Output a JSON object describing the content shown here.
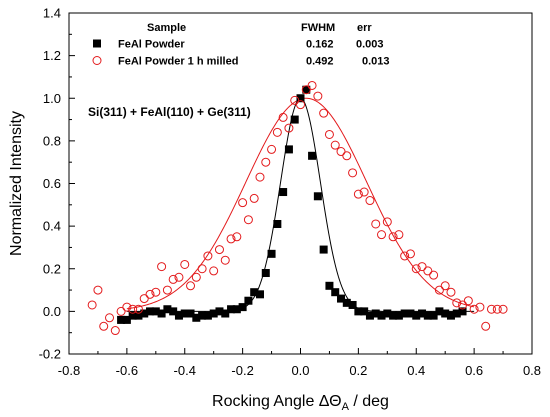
{
  "chart_data": {
    "type": "scatter",
    "xlabel": "Rocking Angle ΔΘ",
    "xlabel_sub": "A",
    "xlabel_unit": " / deg",
    "ylabel": "Normalized Intensity",
    "xlim": [
      -0.8,
      0.8
    ],
    "ylim": [
      -0.2,
      1.4
    ],
    "xticks": [
      -0.8,
      -0.6,
      -0.4,
      -0.2,
      0.0,
      0.2,
      0.4,
      0.6,
      0.8
    ],
    "yticks": [
      -0.2,
      0.0,
      0.2,
      0.4,
      0.6,
      0.8,
      1.0,
      1.2,
      1.4
    ],
    "xtick_labels": [
      "-0.8",
      "-0.6",
      "-0.4",
      "-0.2",
      "0.0",
      "0.2",
      "0.4",
      "0.6",
      "0.8"
    ],
    "ytick_labels": [
      "-0.2",
      "0.0",
      "0.2",
      "0.4",
      "0.6",
      "0.8",
      "1.0",
      "1.2",
      "1.4"
    ],
    "grid": false,
    "legend_position": "top-left",
    "legend_headers": {
      "sample": "Sample",
      "fwhm": "FWHM",
      "err": "err"
    },
    "annotation": "Si(311) + FeAl(110) + Ge(311)",
    "series": [
      {
        "name": "FeAl Powder",
        "fwhm": "0.162",
        "err": "0.003",
        "marker": "filled-square",
        "color": "#000000",
        "fit": {
          "center": 0.0,
          "fwhm": 0.162,
          "amplitude": 1.0
        },
        "x": [
          -0.62,
          -0.6,
          -0.58,
          -0.56,
          -0.54,
          -0.52,
          -0.5,
          -0.48,
          -0.46,
          -0.44,
          -0.42,
          -0.4,
          -0.38,
          -0.36,
          -0.34,
          -0.32,
          -0.3,
          -0.28,
          -0.26,
          -0.24,
          -0.22,
          -0.2,
          -0.18,
          -0.16,
          -0.14,
          -0.12,
          -0.1,
          -0.08,
          -0.06,
          -0.04,
          -0.02,
          0.0,
          0.02,
          0.04,
          0.06,
          0.08,
          0.1,
          0.12,
          0.14,
          0.16,
          0.18,
          0.2,
          0.22,
          0.24,
          0.26,
          0.28,
          0.3,
          0.32,
          0.34,
          0.36,
          0.38,
          0.4,
          0.42,
          0.44,
          0.46,
          0.48,
          0.5,
          0.52,
          0.54,
          0.56
        ],
        "y": [
          -0.04,
          -0.04,
          -0.02,
          -0.02,
          -0.01,
          0.0,
          0.0,
          -0.01,
          0.01,
          0.0,
          -0.02,
          -0.01,
          -0.01,
          -0.03,
          -0.02,
          -0.02,
          -0.01,
          0.0,
          -0.01,
          0.01,
          0.01,
          0.02,
          0.05,
          0.09,
          0.08,
          0.18,
          0.27,
          0.41,
          0.56,
          0.76,
          0.9,
          1.0,
          1.04,
          0.73,
          0.54,
          0.29,
          0.12,
          0.09,
          0.06,
          0.04,
          0.03,
          0.0,
          0.0,
          -0.02,
          -0.01,
          -0.02,
          -0.01,
          -0.02,
          -0.02,
          -0.01,
          -0.01,
          -0.02,
          -0.01,
          -0.02,
          -0.02,
          0.0,
          -0.01,
          -0.02,
          -0.01,
          0.0
        ]
      },
      {
        "name": "FeAl Powder 1 h milled",
        "fwhm": "0.492",
        "err": "0.013",
        "marker": "open-circle",
        "color": "#e31a1c",
        "fit": {
          "center": 0.02,
          "fwhm": 0.492,
          "amplitude": 1.0
        },
        "x": [
          -0.72,
          -0.7,
          -0.68,
          -0.66,
          -0.64,
          -0.62,
          -0.6,
          -0.58,
          -0.56,
          -0.54,
          -0.52,
          -0.5,
          -0.48,
          -0.46,
          -0.44,
          -0.42,
          -0.4,
          -0.38,
          -0.36,
          -0.34,
          -0.32,
          -0.3,
          -0.28,
          -0.26,
          -0.24,
          -0.22,
          -0.2,
          -0.18,
          -0.16,
          -0.14,
          -0.12,
          -0.1,
          -0.08,
          -0.06,
          -0.04,
          -0.02,
          0.0,
          0.02,
          0.04,
          0.06,
          0.08,
          0.1,
          0.12,
          0.14,
          0.16,
          0.18,
          0.2,
          0.22,
          0.24,
          0.26,
          0.28,
          0.3,
          0.32,
          0.34,
          0.36,
          0.38,
          0.4,
          0.42,
          0.44,
          0.46,
          0.48,
          0.5,
          0.52,
          0.54,
          0.56,
          0.58,
          0.6,
          0.62,
          0.64,
          0.66,
          0.68,
          0.7
        ],
        "y": [
          0.03,
          0.1,
          -0.07,
          -0.03,
          -0.09,
          0.0,
          0.02,
          0.01,
          0.01,
          0.06,
          0.08,
          0.09,
          0.21,
          0.1,
          0.15,
          0.16,
          0.22,
          0.12,
          0.16,
          0.2,
          0.26,
          0.19,
          0.29,
          0.24,
          0.34,
          0.35,
          0.51,
          0.43,
          0.53,
          0.63,
          0.7,
          0.76,
          0.84,
          0.91,
          0.86,
          0.99,
          0.97,
          1.04,
          1.06,
          1.01,
          0.93,
          0.83,
          0.78,
          0.75,
          0.73,
          0.65,
          0.55,
          0.56,
          0.52,
          0.41,
          0.36,
          0.42,
          0.35,
          0.36,
          0.26,
          0.27,
          0.2,
          0.21,
          0.19,
          0.17,
          0.1,
          0.12,
          0.09,
          0.04,
          0.03,
          0.05,
          0.01,
          0.02,
          -0.07,
          0.01,
          0.01,
          0.01
        ]
      }
    ]
  }
}
